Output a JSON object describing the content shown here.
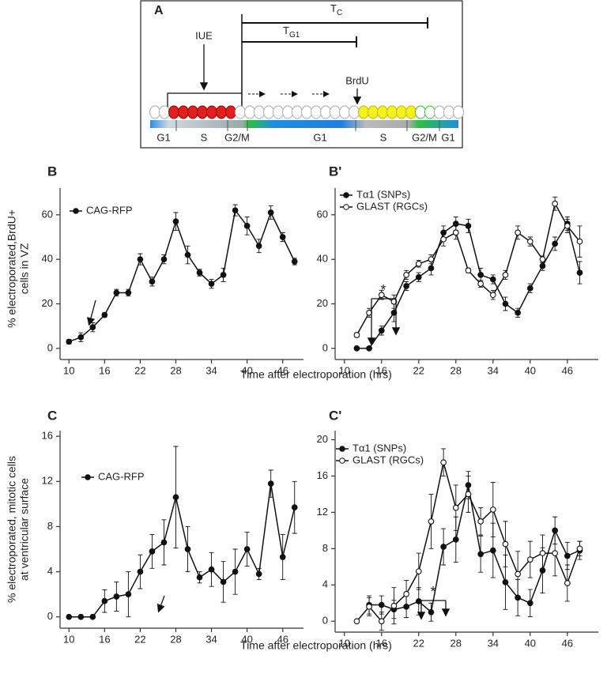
{
  "diagram": {
    "label": "A",
    "tc": [
      "T",
      "C"
    ],
    "tg1": [
      "T",
      "G1"
    ],
    "iue": "IUE",
    "brdu": "BrdU",
    "phases": [
      "G1",
      "S",
      "G2/M",
      "G1",
      "S",
      "G2/M",
      "G1"
    ]
  },
  "chart_data": [
    {
      "type": "line",
      "panel": "B",
      "ylabel": [
        "% electroporated,BrdU+",
        "cells in VZ"
      ],
      "xlabel": "Time after electroporation (hrs)",
      "x": [
        10,
        12,
        14,
        16,
        18,
        20,
        22,
        24,
        26,
        28,
        30,
        32,
        34,
        36,
        38,
        40,
        42,
        44,
        46,
        48
      ],
      "series": [
        {
          "name": "CAG-RFP",
          "color": "#111",
          "marker": "filled",
          "values": [
            3,
            5,
            9.5,
            15,
            25,
            25,
            40,
            30,
            40,
            57,
            42,
            34,
            29,
            33,
            62,
            55,
            46,
            61,
            50,
            39
          ],
          "errors": [
            1,
            2,
            2,
            1,
            1.5,
            1.5,
            2.5,
            2,
            2,
            4,
            4,
            1.5,
            2,
            3,
            2.5,
            4,
            3,
            3,
            2,
            1.5
          ]
        }
      ],
      "xlim": [
        8.5,
        49.5
      ],
      "xticks": [
        10,
        16,
        22,
        28,
        34,
        40,
        46
      ],
      "ylim": [
        -5,
        72
      ],
      "yticks": [
        0,
        20,
        40,
        60
      ],
      "legend": "upper left"
    },
    {
      "type": "line",
      "panel": "B'",
      "x": [
        12,
        14,
        16,
        18,
        20,
        22,
        24,
        26,
        28,
        30,
        32,
        34,
        36,
        38,
        40,
        42,
        44,
        46,
        48
      ],
      "series": [
        {
          "name": "Tα1 (SNPs)",
          "color": "#111",
          "marker": "filled",
          "values": [
            0,
            0,
            8,
            16,
            28,
            32,
            36,
            52,
            56,
            55,
            33,
            31,
            20,
            16,
            27,
            37,
            47,
            56,
            34
          ],
          "errors": [
            0.5,
            0.5,
            2,
            4,
            2,
            2,
            3,
            3,
            3,
            3,
            3,
            2,
            3,
            2,
            2,
            2,
            3,
            3,
            5
          ]
        },
        {
          "name": "GLAST (RGCs)",
          "color": "#111",
          "marker": "open",
          "values": [
            6,
            16,
            24,
            21,
            33,
            38,
            40,
            49,
            52,
            35,
            29,
            24,
            33,
            52,
            48,
            40,
            65,
            55,
            48
          ],
          "errors": [
            1,
            2,
            2,
            3,
            2,
            1.5,
            2,
            3,
            3,
            1,
            1.5,
            2,
            2,
            3,
            2,
            1.5,
            3,
            3,
            7
          ]
        }
      ],
      "annotations": [
        {
          "text": "*"
        }
      ],
      "xlim": [
        8.5,
        51
      ],
      "xticks": [
        10,
        16,
        22,
        28,
        34,
        40,
        46
      ],
      "ylim": [
        -5,
        72
      ],
      "yticks": [
        0,
        20,
        40,
        60
      ],
      "legend": "upper left"
    },
    {
      "type": "line",
      "panel": "C",
      "ylabel": [
        "% electroporated, mitotic cells",
        "at ventricular surface"
      ],
      "xlabel": "Time after electroporation (hrs)",
      "x": [
        10,
        12,
        14,
        16,
        18,
        20,
        22,
        24,
        26,
        28,
        30,
        32,
        34,
        36,
        38,
        40,
        42,
        44,
        46,
        48
      ],
      "series": [
        {
          "name": "CAG-RFP",
          "color": "#111",
          "marker": "filled",
          "values": [
            0,
            0,
            0,
            1.4,
            1.8,
            2,
            4,
            5.8,
            6.6,
            10.6,
            6,
            3.5,
            4.2,
            3.1,
            4,
            6,
            3.8,
            11.8,
            5.3,
            9.7
          ],
          "errors": [
            0,
            0,
            0,
            1,
            1.3,
            2,
            1.5,
            1.5,
            2,
            4.5,
            2,
            0.5,
            1.5,
            1.8,
            2,
            1.5,
            0.5,
            1.2,
            2,
            2.3
          ]
        }
      ],
      "xlim": [
        8.5,
        49.5
      ],
      "xticks": [
        10,
        16,
        22,
        28,
        34,
        40,
        46
      ],
      "ylim": [
        -1,
        16.5
      ],
      "yticks": [
        0,
        4,
        8,
        12,
        16
      ],
      "legend": "upper left"
    },
    {
      "type": "line",
      "panel": "C'",
      "x": [
        12,
        14,
        16,
        18,
        20,
        22,
        24,
        26,
        28,
        30,
        32,
        34,
        36,
        38,
        40,
        42,
        44,
        46,
        48
      ],
      "series": [
        {
          "name": "Tα1 (SNPs)",
          "color": "#111",
          "marker": "filled",
          "values": [
            null,
            1.8,
            1.8,
            1.3,
            1.6,
            2.2,
            1,
            8.2,
            9,
            15,
            7.4,
            7.8,
            4.3,
            2.6,
            2,
            5.6,
            10,
            7.2,
            7.8
          ],
          "errors": [
            null,
            1,
            1,
            1,
            1.2,
            1.5,
            1,
            2,
            2.5,
            1.5,
            2,
            3,
            3,
            2,
            1.5,
            2.5,
            1.5,
            1.5,
            1
          ]
        },
        {
          "name": "GLAST (RGCs)",
          "color": "#111",
          "marker": "open",
          "values": [
            0,
            1.6,
            0,
            1.7,
            3,
            5.5,
            11,
            17.5,
            12.5,
            14,
            11,
            12.3,
            8.5,
            5.2,
            6.8,
            7.5,
            7.5,
            4.2,
            8
          ],
          "errors": [
            0,
            1,
            1,
            2,
            1.5,
            2,
            3,
            1.5,
            2.5,
            2,
            1.5,
            3,
            2.5,
            2.5,
            2,
            2,
            2.5,
            2,
            0.8
          ]
        }
      ],
      "annotations": [
        {
          "text": "*"
        }
      ],
      "xlim": [
        8.5,
        51
      ],
      "xticks": [
        10,
        16,
        22,
        28,
        34,
        40,
        46
      ],
      "ylim": [
        -1.2,
        21
      ],
      "yticks": [
        0,
        4,
        8,
        12,
        16,
        20
      ],
      "legend": "upper left"
    }
  ]
}
